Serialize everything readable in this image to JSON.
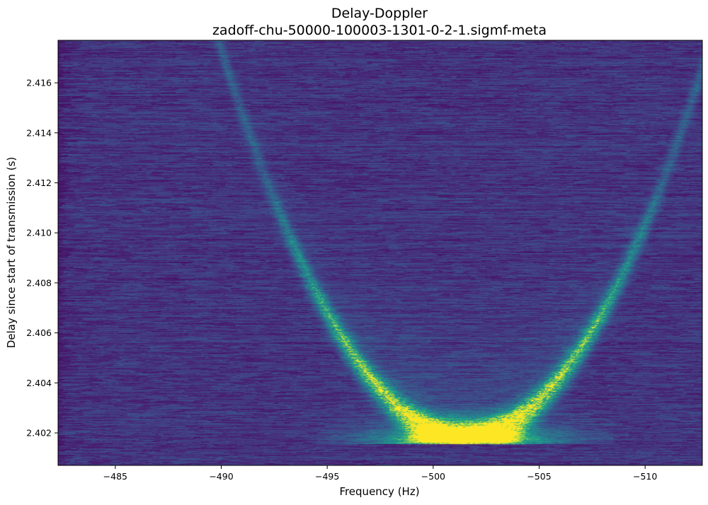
{
  "chart_data": {
    "type": "heatmap",
    "title": "Delay-Doppler",
    "subtitle": "zadoff-chu-50000-100003-1301-0-2-1.sigmf-meta",
    "xlabel": "Frequency (Hz)",
    "ylabel": "Delay since start of transmission (s)",
    "xlim": [
      -482.3,
      -512.7
    ],
    "ylim": [
      2.4007,
      2.4177
    ],
    "x_axis_inverted": true,
    "x_ticks": [
      -485,
      -490,
      -495,
      -500,
      -505,
      -510
    ],
    "x_tick_labels": [
      "−485",
      "−490",
      "−495",
      "−500",
      "−505",
      "−510"
    ],
    "y_ticks": [
      2.402,
      2.404,
      2.406,
      2.408,
      2.41,
      2.412,
      2.414,
      2.416
    ],
    "y_tick_labels": [
      "2.402",
      "2.404",
      "2.406",
      "2.408",
      "2.410",
      "2.412",
      "2.414",
      "2.416"
    ],
    "colormap": "viridis",
    "grid": false,
    "background_color": "#440154",
    "peak_color": "#fde725",
    "features": {
      "arc_vertex_x": -501.5,
      "arc_vertex_y": 2.4018,
      "arc_edge_x": [
        -489.3,
        -507.0
      ],
      "arc_edge_y": 2.411,
      "peak_intensity_x_range": [
        -495,
        -503
      ],
      "peak_intensity_y": 2.4019
    }
  }
}
